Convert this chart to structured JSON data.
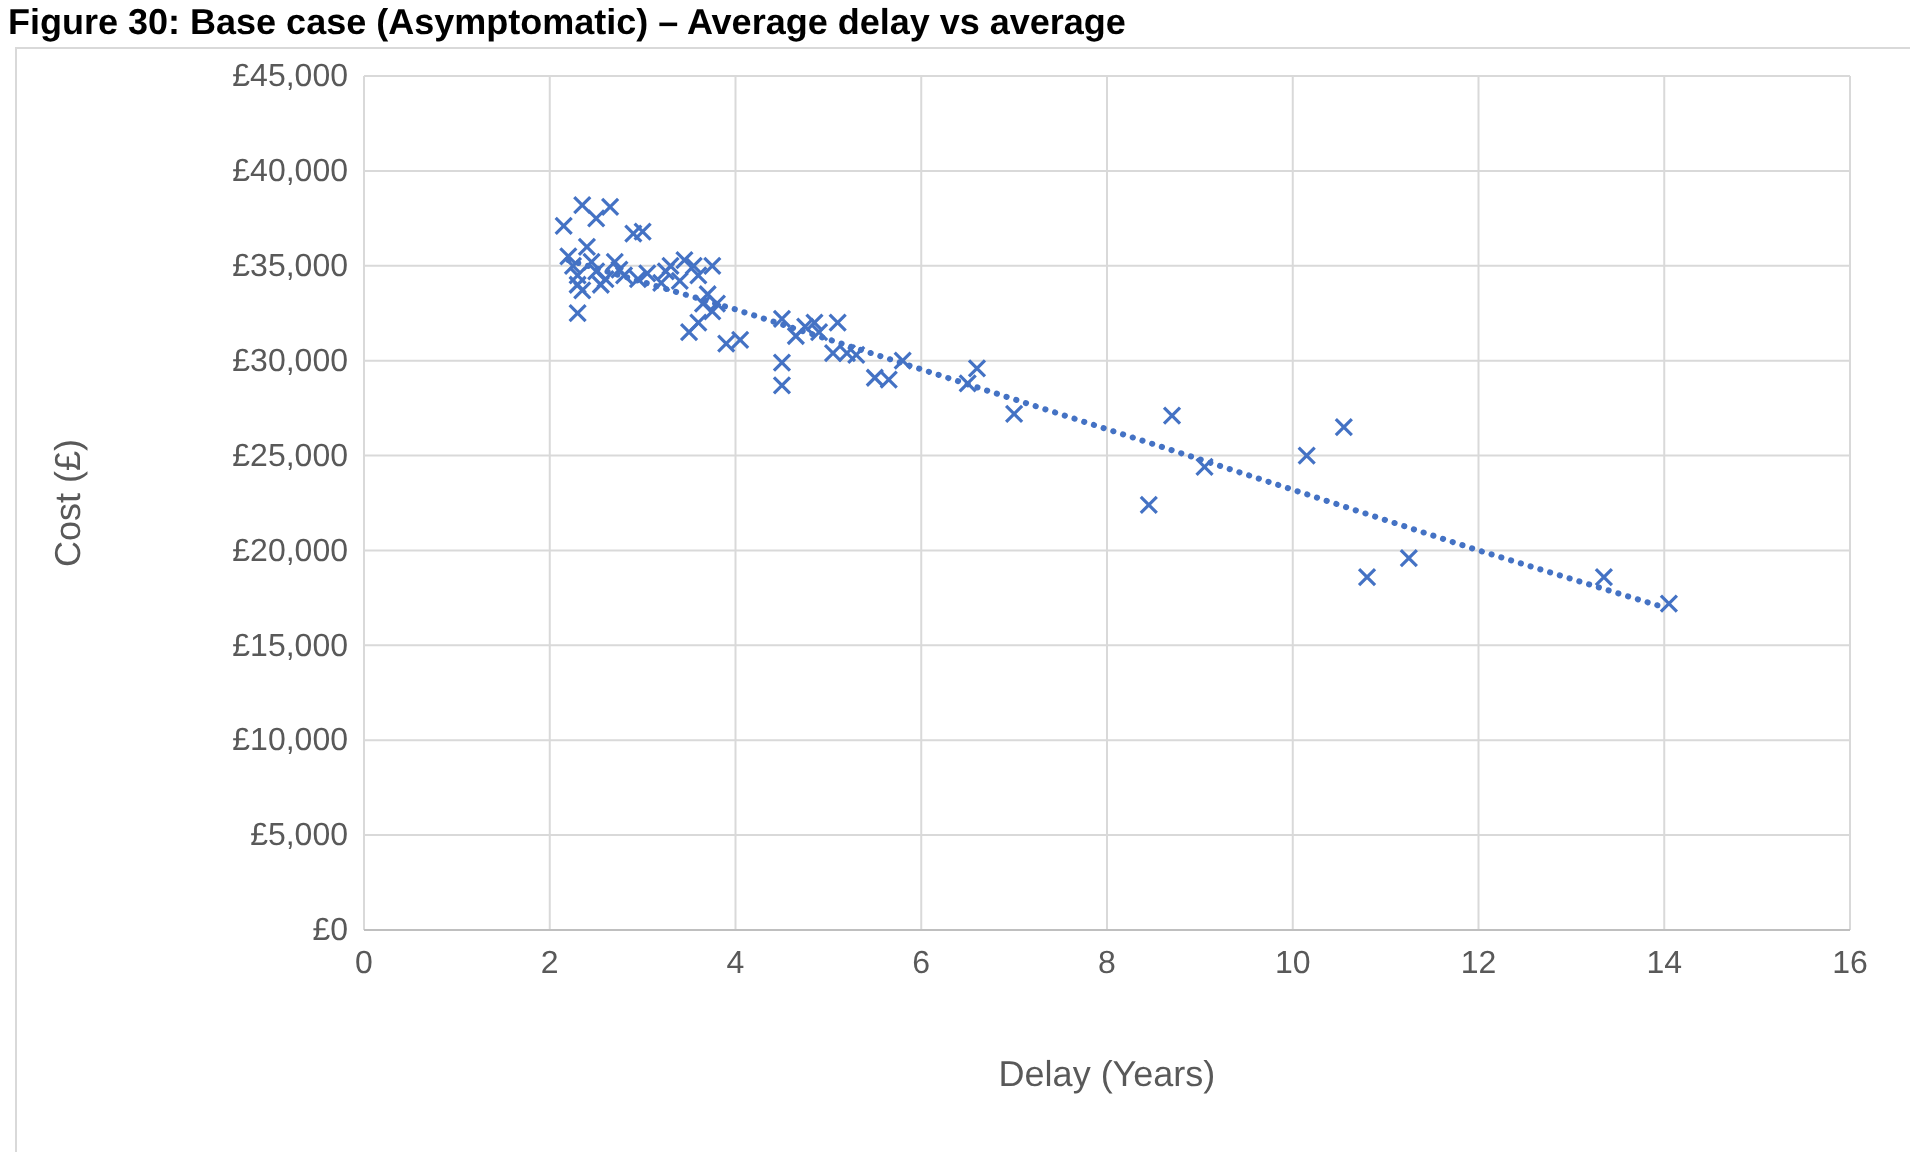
{
  "chart_data": {
    "type": "scatter",
    "title": "Figure 30: Base case (Asymptomatic) – Average delay vs average",
    "xlabel": "Delay (Years)",
    "ylabel": "Cost (£)",
    "xlim": [
      0,
      16
    ],
    "xticks": [
      0,
      2,
      4,
      6,
      8,
      10,
      12,
      14,
      16
    ],
    "ylim": [
      0,
      45000
    ],
    "yticks": [
      {
        "value": 0,
        "label": "£0"
      },
      {
        "value": 5000,
        "label": "£5,000"
      },
      {
        "value": 10000,
        "label": "£10,000"
      },
      {
        "value": 15000,
        "label": "£15,000"
      },
      {
        "value": 20000,
        "label": "£20,000"
      },
      {
        "value": 25000,
        "label": "£25,000"
      },
      {
        "value": 30000,
        "label": "£30,000"
      },
      {
        "value": 35000,
        "label": "£35,000"
      },
      {
        "value": 40000,
        "label": "£40,000"
      },
      {
        "value": 45000,
        "label": "£45,000"
      }
    ],
    "grid": true,
    "series": [
      {
        "marker": "cross",
        "color": "#4472c4",
        "x": [
          2.15,
          2.35,
          2.65,
          2.5,
          2.2,
          2.25,
          2.3,
          2.3,
          2.35,
          2.3,
          2.4,
          2.45,
          2.5,
          2.55,
          2.6,
          2.7,
          2.75,
          2.8,
          2.9,
          3.0,
          2.95,
          3.05,
          3.2,
          3.25,
          3.3,
          3.4,
          3.45,
          3.55,
          3.6,
          3.5,
          3.6,
          3.65,
          3.7,
          3.75,
          3.8,
          3.75,
          3.9,
          4.05,
          4.5,
          4.5,
          4.5,
          4.65,
          4.75,
          4.85,
          4.9,
          5.05,
          5.1,
          5.2,
          5.3,
          5.5,
          5.65,
          5.8,
          6.5,
          6.6,
          7.0,
          8.45,
          8.7,
          9.05,
          10.15,
          10.55,
          10.8,
          11.25,
          13.35,
          14.05
        ],
        "values": [
          37100,
          38200,
          38100,
          37500,
          35500,
          35000,
          34500,
          34000,
          33700,
          32500,
          36000,
          35200,
          34700,
          34000,
          34300,
          35200,
          34800,
          34500,
          36700,
          36800,
          34300,
          34600,
          34100,
          34700,
          35000,
          34200,
          35300,
          35000,
          34500,
          31500,
          32000,
          33000,
          33500,
          32600,
          33000,
          35000,
          30900,
          31100,
          32200,
          29900,
          28700,
          31300,
          31800,
          32000,
          31500,
          30400,
          32000,
          30400,
          30300,
          29100,
          29000,
          30000,
          28800,
          29600,
          27200,
          22400,
          27100,
          24400,
          25000,
          26500,
          18600,
          19600,
          18600,
          17200
        ]
      },
      {
        "type": "line",
        "line_style": "dotted",
        "marker": "none",
        "color": "#4472c4",
        "x": [
          2.2,
          4,
          8.5,
          12,
          14
        ],
        "values": [
          35300,
          32700,
          25600,
          20000,
          17000
        ]
      }
    ]
  }
}
